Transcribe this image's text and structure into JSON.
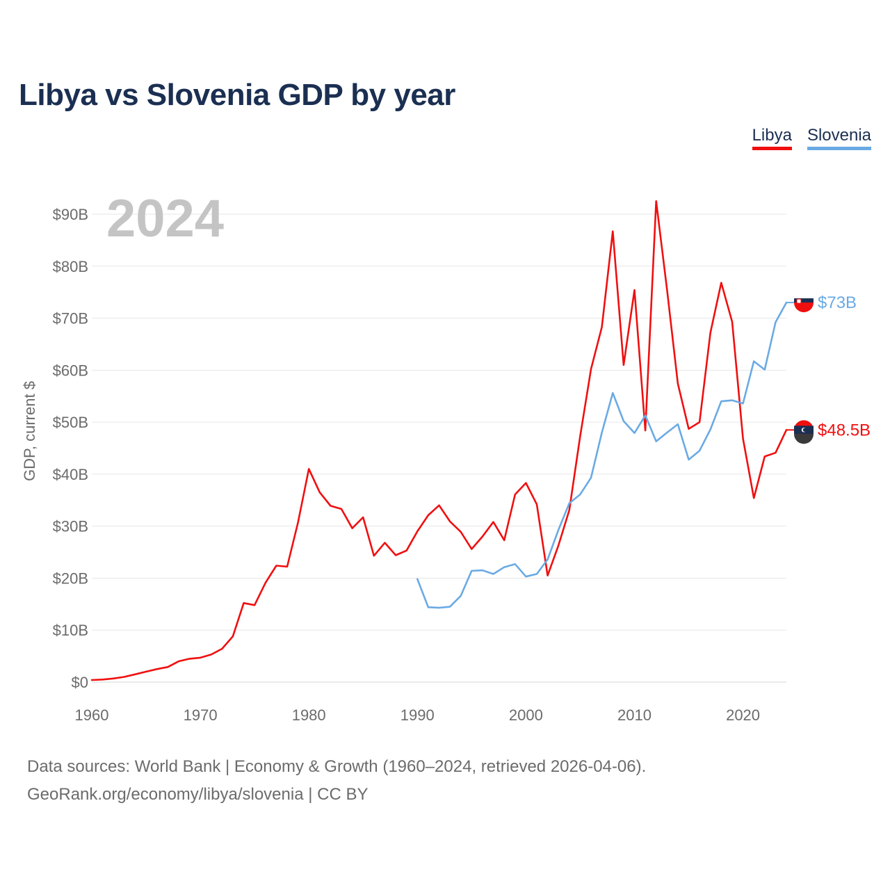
{
  "title": "Libya vs Slovenia GDP by year",
  "legend": [
    {
      "label": "Libya",
      "color": "#f00f0f"
    },
    {
      "label": "Slovenia",
      "color": "#6aaae4"
    }
  ],
  "year_label": "2024",
  "footer": {
    "line1": "Data sources: World Bank | Economy & Growth (1960–2024, retrieved 2026-04-06).",
    "line2": "GeoRank.org/economy/libya/slovenia | CC BY"
  },
  "chart_data": {
    "type": "line",
    "title": "Libya vs Slovenia GDP by year",
    "xlabel": "",
    "ylabel": "GDP, current $",
    "xlim": [
      1960,
      2024
    ],
    "ylim": [
      0,
      90
    ],
    "y_unit": "billion USD",
    "x_ticks": [
      "1960",
      "1970",
      "1980",
      "1990",
      "2000",
      "2010",
      "2020"
    ],
    "y_ticks": [
      "$0",
      "$10B",
      "$20B",
      "$30B",
      "$40B",
      "$50B",
      "$60B",
      "$70B",
      "$80B",
      "$90B"
    ],
    "grid": true,
    "legend_position": "top-right",
    "series": [
      {
        "name": "Libya",
        "color": "#f00f0f",
        "end_label": "$48.5B",
        "start_year": 1960,
        "values": [
          0.4,
          0.5,
          0.7,
          1.0,
          1.5,
          2.0,
          2.5,
          2.9,
          4.0,
          4.5,
          4.7,
          5.3,
          6.4,
          8.8,
          15.2,
          14.8,
          19.1,
          22.4,
          22.2,
          30.7,
          41.0,
          36.5,
          33.9,
          33.3,
          29.6,
          31.7,
          24.3,
          26.8,
          24.4,
          25.3,
          29.0,
          32.1,
          34.0,
          30.9,
          28.9,
          25.6,
          28.0,
          30.8,
          27.3,
          36.1,
          38.3,
          34.2,
          20.5,
          26.3,
          33.1,
          47.3,
          60.2,
          68.3,
          86.7,
          61.0,
          75.4,
          48.4,
          92.5,
          75.5,
          57.4,
          48.7,
          50.0,
          67.2,
          76.8,
          69.3,
          46.8,
          35.4,
          43.4,
          44.1,
          48.5
        ]
      },
      {
        "name": "Slovenia",
        "color": "#6aaae4",
        "end_label": "$73B",
        "start_year": 1990,
        "values": [
          19.8,
          14.4,
          14.3,
          14.5,
          16.6,
          21.4,
          21.5,
          20.8,
          22.1,
          22.7,
          20.3,
          20.8,
          23.6,
          29.3,
          34.4,
          36.1,
          39.3,
          48.0,
          55.6,
          50.2,
          47.9,
          51.3,
          46.3,
          48.0,
          49.6,
          42.8,
          44.5,
          48.6,
          54.0,
          54.2,
          53.6,
          61.7,
          60.1,
          69.2,
          73.0
        ]
      }
    ]
  }
}
